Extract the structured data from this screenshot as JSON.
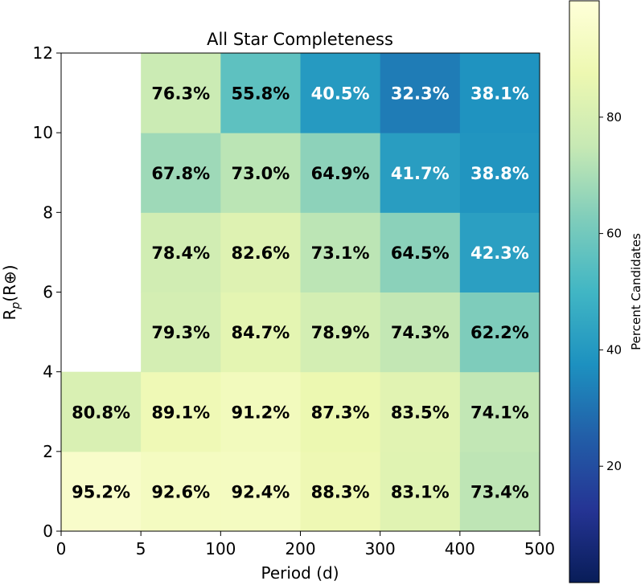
{
  "chart_data": {
    "type": "heatmap",
    "title": "All Star Completeness",
    "xlabel": "Period (d)",
    "ylabel": "Rp(R⊕)",
    "ylabel_main": "R",
    "ylabel_sub": "p",
    "ylabel_rest": "(R⊕)",
    "x_ticks": [
      "0",
      "5",
      "100",
      "200",
      "300",
      "400",
      "500"
    ],
    "y_ticks": [
      "0",
      "2",
      "4",
      "6",
      "8",
      "10",
      "12"
    ],
    "x_bins": [
      "0-5",
      "5-100",
      "100-200",
      "200-300",
      "300-400",
      "400-500"
    ],
    "y_bins": [
      "0-2",
      "2-4",
      "4-6",
      "6-8",
      "8-10",
      "10-12"
    ],
    "cells": [
      {
        "col": 0,
        "row": 0,
        "value": 95.2,
        "label": "95.2%"
      },
      {
        "col": 1,
        "row": 0,
        "value": 92.6,
        "label": "92.6%"
      },
      {
        "col": 2,
        "row": 0,
        "value": 92.4,
        "label": "92.4%"
      },
      {
        "col": 3,
        "row": 0,
        "value": 88.3,
        "label": "88.3%"
      },
      {
        "col": 4,
        "row": 0,
        "value": 83.1,
        "label": "83.1%"
      },
      {
        "col": 5,
        "row": 0,
        "value": 73.4,
        "label": "73.4%"
      },
      {
        "col": 0,
        "row": 1,
        "value": 80.8,
        "label": "80.8%"
      },
      {
        "col": 1,
        "row": 1,
        "value": 89.1,
        "label": "89.1%"
      },
      {
        "col": 2,
        "row": 1,
        "value": 91.2,
        "label": "91.2%"
      },
      {
        "col": 3,
        "row": 1,
        "value": 87.3,
        "label": "87.3%"
      },
      {
        "col": 4,
        "row": 1,
        "value": 83.5,
        "label": "83.5%"
      },
      {
        "col": 5,
        "row": 1,
        "value": 74.1,
        "label": "74.1%"
      },
      {
        "col": 1,
        "row": 2,
        "value": 79.3,
        "label": "79.3%"
      },
      {
        "col": 2,
        "row": 2,
        "value": 84.7,
        "label": "84.7%"
      },
      {
        "col": 3,
        "row": 2,
        "value": 78.9,
        "label": "78.9%"
      },
      {
        "col": 4,
        "row": 2,
        "value": 74.3,
        "label": "74.3%"
      },
      {
        "col": 5,
        "row": 2,
        "value": 62.2,
        "label": "62.2%"
      },
      {
        "col": 1,
        "row": 3,
        "value": 78.4,
        "label": "78.4%"
      },
      {
        "col": 2,
        "row": 3,
        "value": 82.6,
        "label": "82.6%"
      },
      {
        "col": 3,
        "row": 3,
        "value": 73.1,
        "label": "73.1%"
      },
      {
        "col": 4,
        "row": 3,
        "value": 64.5,
        "label": "64.5%"
      },
      {
        "col": 5,
        "row": 3,
        "value": 42.3,
        "label": "42.3%"
      },
      {
        "col": 1,
        "row": 4,
        "value": 67.8,
        "label": "67.8%"
      },
      {
        "col": 2,
        "row": 4,
        "value": 73.0,
        "label": "73.0%"
      },
      {
        "col": 3,
        "row": 4,
        "value": 64.9,
        "label": "64.9%"
      },
      {
        "col": 4,
        "row": 4,
        "value": 41.7,
        "label": "41.7%"
      },
      {
        "col": 5,
        "row": 4,
        "value": 38.8,
        "label": "38.8%"
      },
      {
        "col": 1,
        "row": 5,
        "value": 76.3,
        "label": "76.3%"
      },
      {
        "col": 2,
        "row": 5,
        "value": 55.8,
        "label": "55.8%"
      },
      {
        "col": 3,
        "row": 5,
        "value": 40.5,
        "label": "40.5%"
      },
      {
        "col": 4,
        "row": 5,
        "value": 32.3,
        "label": "32.3%"
      },
      {
        "col": 5,
        "row": 5,
        "value": 38.1,
        "label": "38.1%"
      }
    ],
    "colorbar": {
      "label": "Percent Candidates",
      "range": [
        0,
        100
      ],
      "ticks": [
        20,
        40,
        60,
        80
      ],
      "tick_labels": [
        "20",
        "40",
        "60",
        "80"
      ],
      "colormap": "YlGnBu"
    },
    "grid": false
  }
}
